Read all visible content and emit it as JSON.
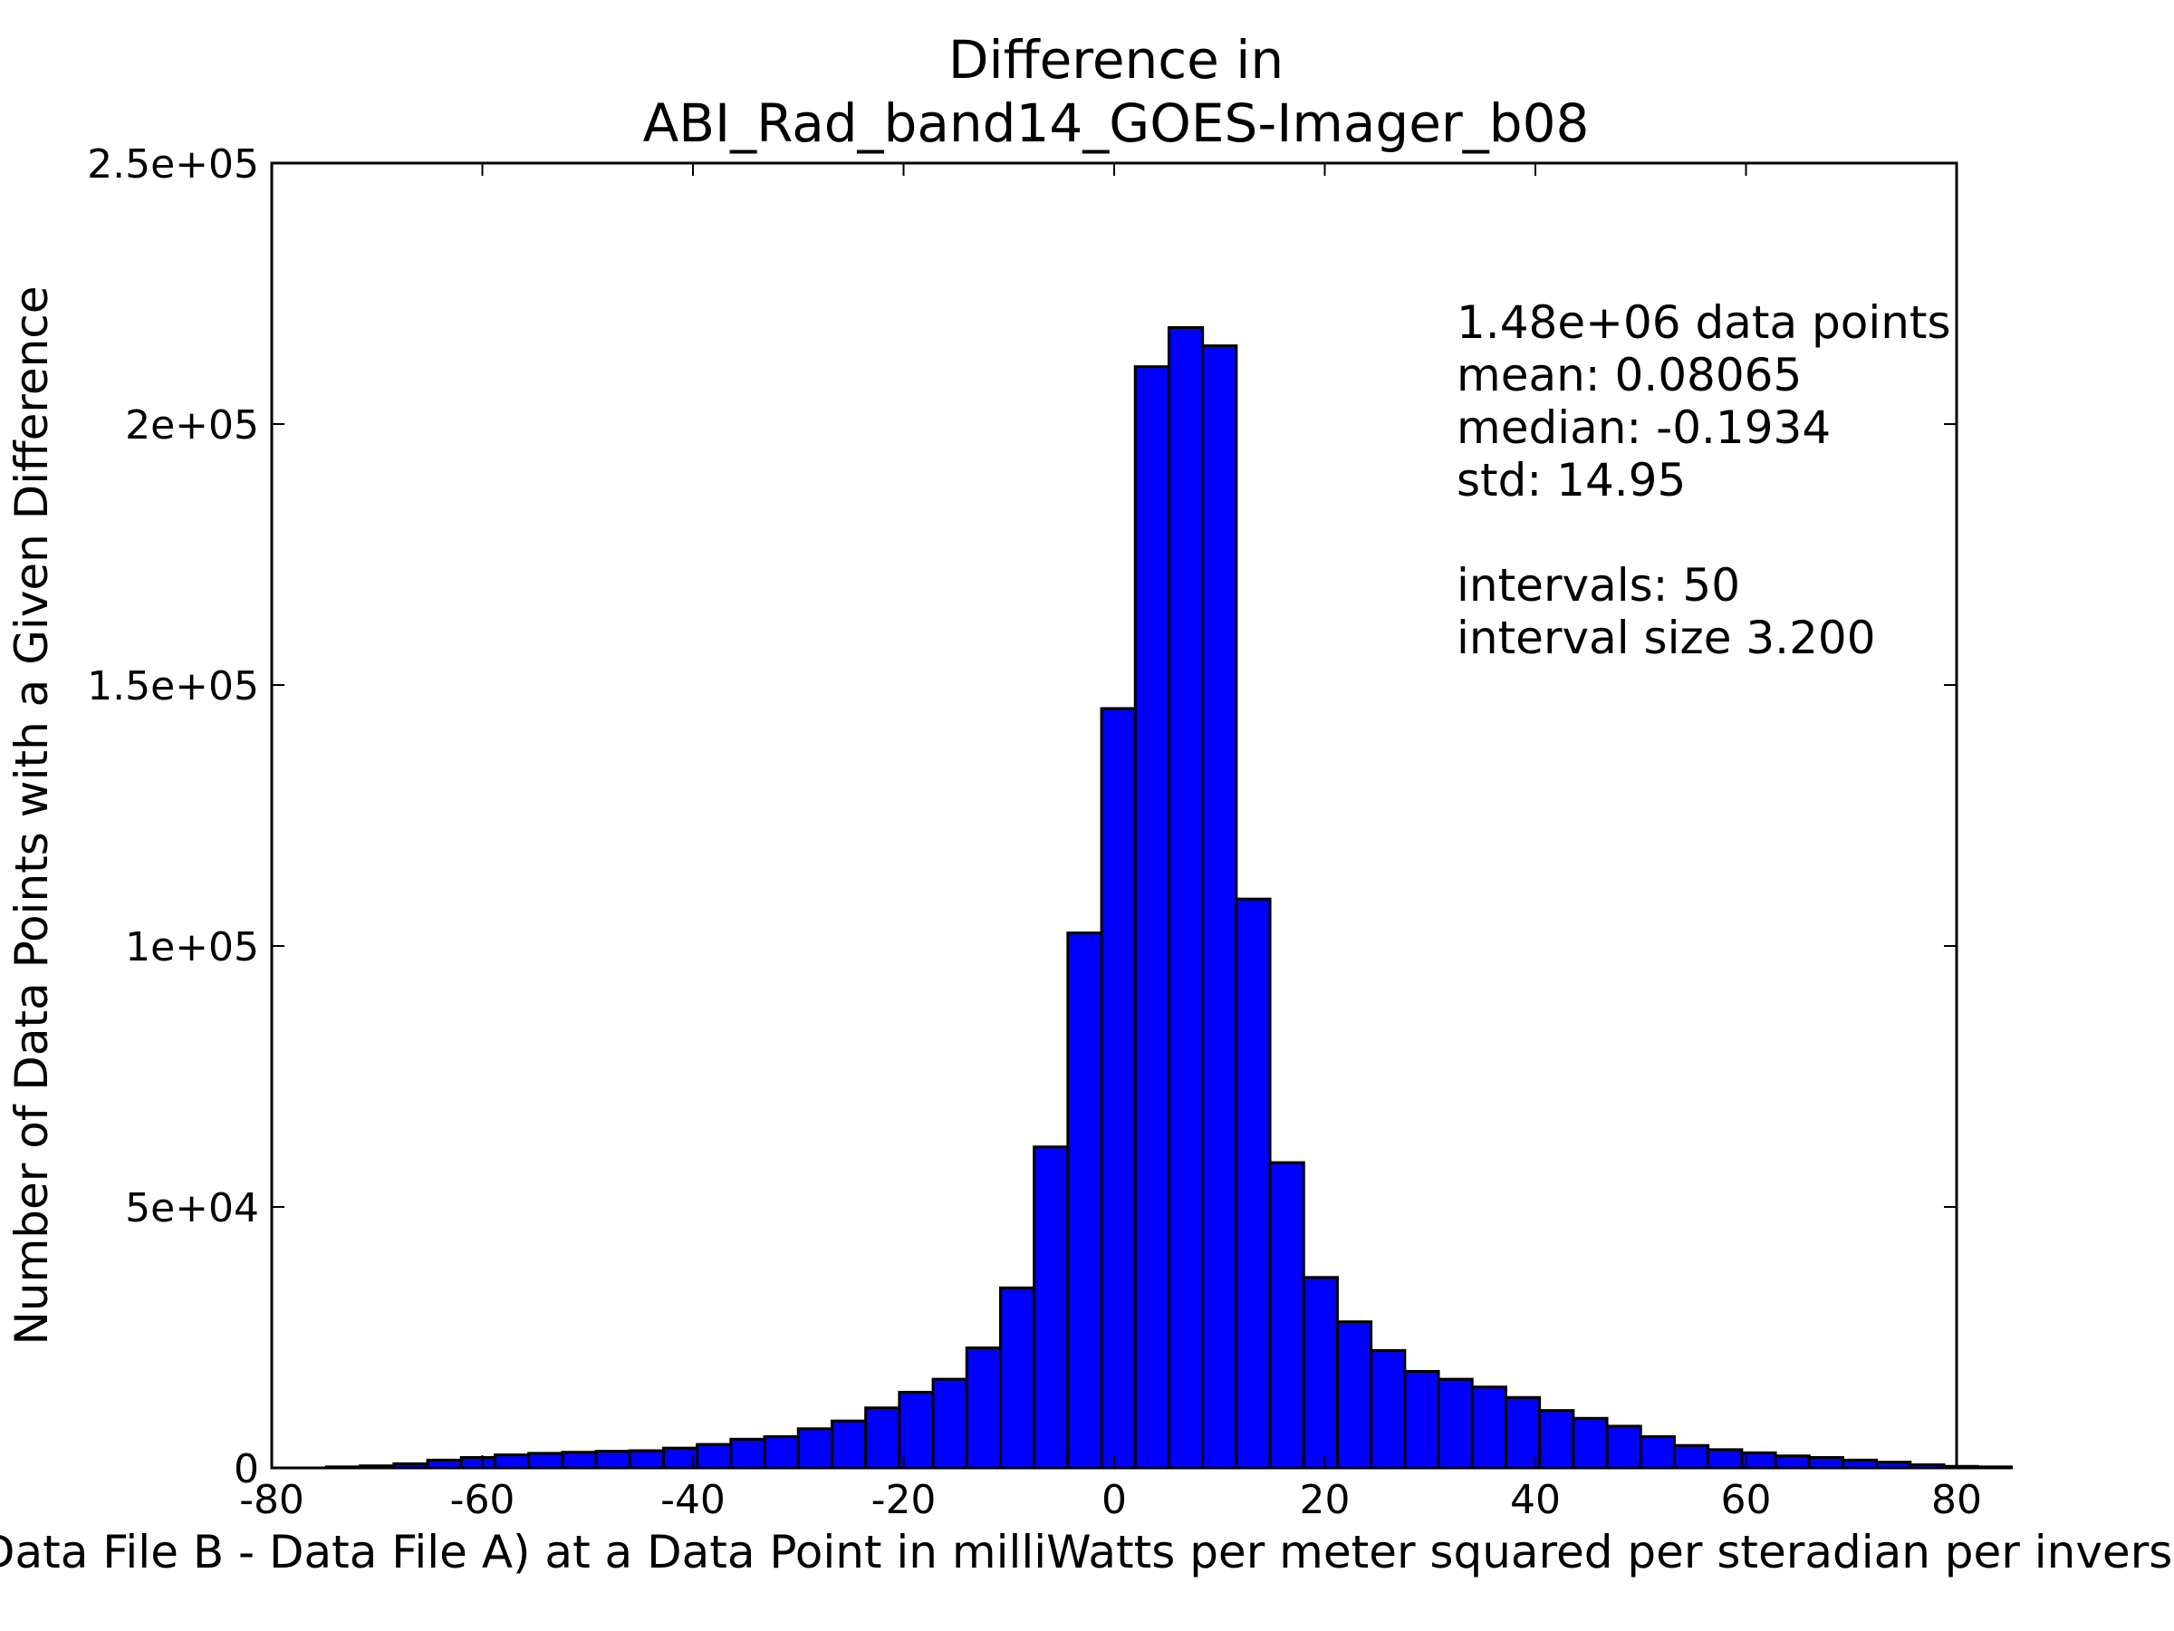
{
  "chart_data": {
    "type": "bar",
    "title_lines": [
      "Difference in",
      "ABI_Rad_band14_GOES-Imager_b08"
    ],
    "xlabel": "Value of (Data File B - Data File A) at a Data Point in milliWatts per meter squared per steradian per inverse centimeter",
    "ylabel": "Number of Data Points with a Given Difference",
    "xlim": [
      -80,
      80
    ],
    "ylim": [
      0,
      250000
    ],
    "x_ticks": [
      -80,
      -60,
      -40,
      -20,
      0,
      20,
      40,
      60,
      80
    ],
    "x_tick_labels": [
      "-80",
      "-60",
      "-40",
      "-20",
      "0",
      "20",
      "40",
      "60",
      "80"
    ],
    "y_ticks": [
      0,
      50000,
      100000,
      150000,
      200000,
      250000
    ],
    "y_tick_labels": [
      "0",
      "5e+04",
      "1e+05",
      "1.5e+05",
      "2e+05",
      "2.5e+05"
    ],
    "bin_start": -74.8,
    "bin_width": 3.2,
    "values": [
      200,
      400,
      800,
      1500,
      2000,
      2500,
      2800,
      3000,
      3200,
      3300,
      3800,
      4500,
      5500,
      6000,
      7500,
      9000,
      11500,
      14500,
      17000,
      23000,
      34500,
      61500,
      102500,
      145500,
      211000,
      218500,
      215000,
      109000,
      58500,
      36500,
      28000,
      22500,
      18500,
      17000,
      15500,
      13500,
      11000,
      9500,
      8000,
      6000,
      4300,
      3500,
      2900,
      2300,
      2000,
      1500,
      1100,
      600,
      300,
      200
    ],
    "bar_color": "#0000ff",
    "grid": false,
    "legend": "none",
    "annotation_lines": [
      "1.48e+06 data points",
      "mean: 0.08065",
      "median: -0.1934",
      "std: 14.95",
      "",
      "intervals: 50",
      "interval size 3.200"
    ]
  }
}
